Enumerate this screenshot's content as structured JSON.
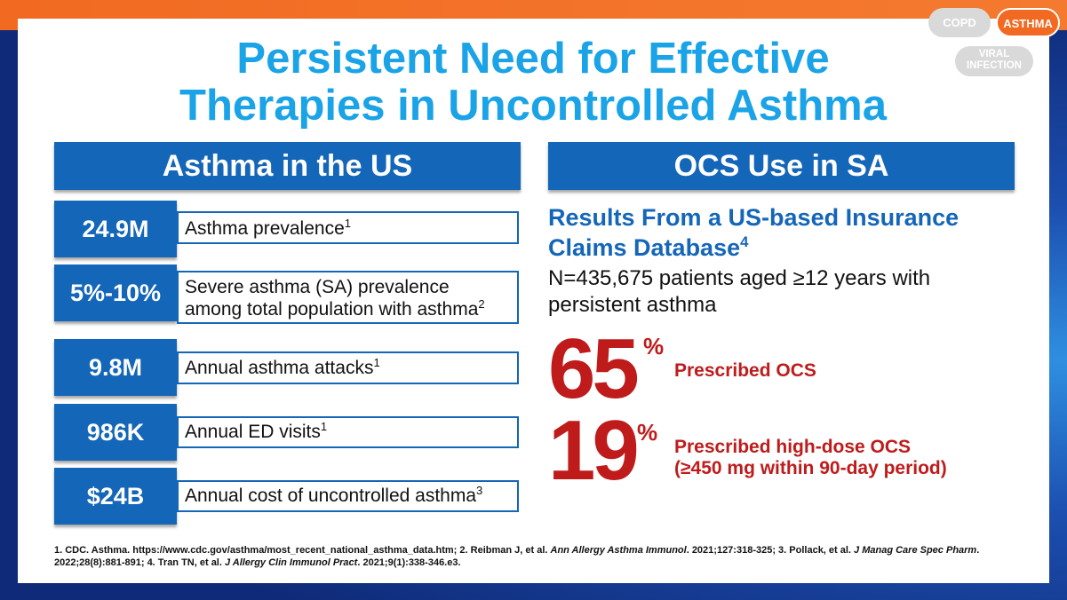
{
  "title": {
    "line1": "Persistent Need for Effective",
    "line2": "Therapies in Uncontrolled Asthma"
  },
  "nav": {
    "copd": "COPD",
    "asthma": "ASTHMA",
    "viral_line1": "VIRAL",
    "viral_line2": "INFECTION"
  },
  "left": {
    "header": "Asthma in the US",
    "stats": [
      {
        "value": "24.9M",
        "line1": "Asthma prevalence",
        "sup": "1"
      },
      {
        "value": "5%-10%",
        "line1": "Severe asthma (SA) prevalence",
        "line2": "among total population with asthma",
        "sup": "2"
      },
      {
        "value": "9.8M",
        "line1": "Annual asthma attacks",
        "sup": "1"
      },
      {
        "value": "986K",
        "line1": "Annual ED visits",
        "sup": "1"
      },
      {
        "value": "$24B",
        "line1": "Annual cost of uncontrolled asthma",
        "sup": "3"
      }
    ]
  },
  "right": {
    "header": "OCS Use in SA",
    "subtitle_line1": "Results From a US-based Insurance",
    "subtitle_line2": "Claims Database",
    "subtitle_sup": "4",
    "n_line1": "N=435,675 patients aged ≥12 years with",
    "n_line2": "persistent asthma",
    "stat1": {
      "value": "65",
      "pct": "%",
      "label": "Prescribed OCS"
    },
    "stat2": {
      "value": "19",
      "pct": "%",
      "label_line1": "Prescribed high-dose OCS",
      "label_line2": "(≥450 mg within 90-day period)"
    }
  },
  "footnote": {
    "f1": "1. CDC. Asthma. https://www.cdc.gov/asthma/most_recent_national_asthma_data.htm; 2. Reibman J, et al. ",
    "j2": "Ann Allergy Asthma Immunol",
    "f2": ". 2021;127:318-325; 3. Pollack, et al. ",
    "j3": "J Manag Care Spec Pharm",
    "f3": ".",
    "f4": "2022;28(8):881-891; 4. Tran TN, et al. ",
    "j4": "J Allergy Clin Immunol Pract",
    "f5": ". 2021;9(1):338-346.e3."
  },
  "colors": {
    "brand_blue": "#1466b8",
    "title_cyan": "#1aa3e6",
    "accent_red": "#bf1b1b",
    "accent_orange": "#f26a22"
  }
}
